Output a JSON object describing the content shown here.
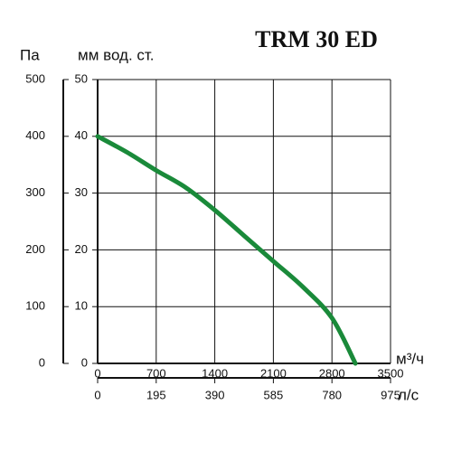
{
  "chart_data": {
    "type": "line",
    "title": "TRM 30 ED",
    "y_label": "Па",
    "y2_label": "мм вод. ст.",
    "x_label": "м³/ч",
    "x2_label": "л/с",
    "x": [
      0,
      350,
      700,
      1050,
      1400,
      1750,
      2100,
      2450,
      2800,
      3080
    ],
    "series": [
      {
        "color": "#1a8a3a",
        "axis": "y2",
        "values": [
          40,
          37.2,
          34,
          31,
          27,
          22.5,
          18,
          13.5,
          8,
          0
        ]
      }
    ],
    "xlim": [
      0,
      3500
    ],
    "xticks": [
      0,
      700,
      1400,
      2100,
      2800,
      3500
    ],
    "x2lim": [
      0,
      975
    ],
    "x2ticks": [
      0,
      195,
      390,
      585,
      780,
      975
    ],
    "ylim": [
      0,
      500
    ],
    "yticks": [
      0,
      100,
      200,
      300,
      400,
      500
    ],
    "y2lim": [
      0,
      50
    ],
    "y2ticks": [
      0,
      10,
      20,
      30,
      40,
      50
    ],
    "grid": true
  }
}
